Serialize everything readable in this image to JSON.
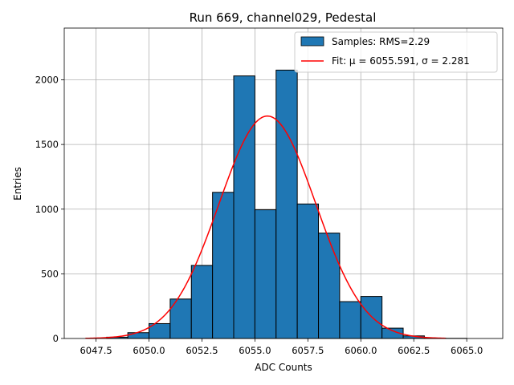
{
  "chart_data": {
    "type": "bar",
    "title": "Run 669, channel029, Pedestal",
    "xlabel": "ADC Counts",
    "ylabel": "Entries",
    "xlim": [
      6046.0,
      6066.7
    ],
    "ylim": [
      0,
      2400
    ],
    "xticks": [
      6047.5,
      6050.0,
      6052.5,
      6055.0,
      6057.5,
      6060.0,
      6062.5,
      6065.0
    ],
    "xtick_labels": [
      "6047.5",
      "6050.0",
      "6052.5",
      "6055.0",
      "6057.5",
      "6060.0",
      "6062.5",
      "6065.0"
    ],
    "yticks": [
      0,
      500,
      1000,
      1500,
      2000
    ],
    "ytick_labels": [
      "0",
      "500",
      "1000",
      "1500",
      "2000"
    ],
    "grid": true,
    "legend_position": "top-right",
    "bin_width": 1.0,
    "bin_edges": [
      6048,
      6049,
      6050,
      6051,
      6052,
      6053,
      6054,
      6055,
      6056,
      6057,
      6058,
      6059,
      6060,
      6061,
      6062,
      6063,
      6064,
      6065
    ],
    "counts": [
      10,
      45,
      115,
      305,
      565,
      1130,
      2030,
      995,
      2075,
      1040,
      815,
      285,
      325,
      80,
      20,
      3,
      1
    ],
    "fit": {
      "mu": 6055.591,
      "sigma": 2.281,
      "amplitude": 1720,
      "x_range": [
        6047,
        6064
      ]
    },
    "colors": {
      "bars": "#1f77b4",
      "bar_edge": "#000000",
      "fit_line": "#ff0000",
      "grid": "#b0b0b0"
    },
    "legend": [
      {
        "label": "Samples: RMS=2.29",
        "marker": "patch",
        "color": "#1f77b4"
      },
      {
        "label": "Fit: μ = 6055.591, σ = 2.281",
        "marker": "line",
        "color": "#ff0000"
      }
    ]
  }
}
